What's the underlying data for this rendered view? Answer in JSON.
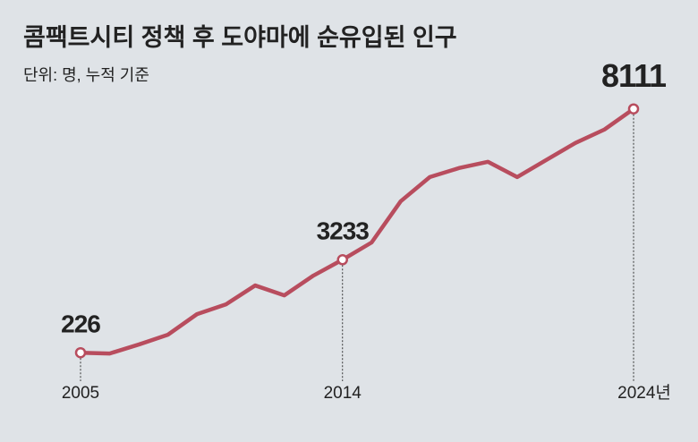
{
  "chart_data": {
    "type": "line",
    "title": "콤팩트시티 정책 후 도야마에 순유입된 인구",
    "subtitle": "단위: 명, 누적 기준",
    "x": [
      2005,
      2006,
      2007,
      2008,
      2009,
      2010,
      2011,
      2012,
      2013,
      2014,
      2015,
      2016,
      2017,
      2018,
      2019,
      2020,
      2021,
      2022,
      2023,
      2024
    ],
    "values": [
      226,
      200,
      490,
      806,
      1472,
      1791,
      2400,
      2081,
      2719,
      3233,
      3791,
      5124,
      5907,
      6197,
      6400,
      5907,
      6458,
      7009,
      7444,
      8111
    ],
    "value_labels": [
      "226",
      null,
      null,
      null,
      null,
      null,
      null,
      null,
      null,
      "3233",
      null,
      null,
      null,
      null,
      null,
      null,
      null,
      null,
      null,
      "8111"
    ],
    "color": "#b84d5e",
    "xlim": [
      2005,
      2024
    ],
    "xticks": [
      2005,
      2014,
      {
        "value": 2024,
        "label": "2024년"
      }
    ],
    "ylim": [
      0,
      9000
    ]
  }
}
